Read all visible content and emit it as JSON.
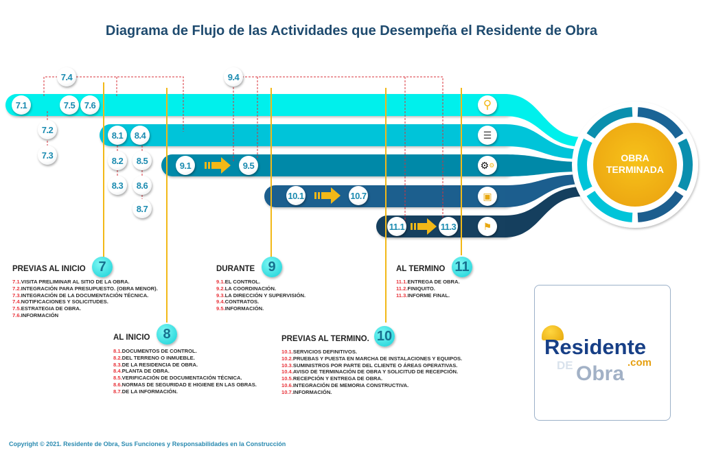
{
  "title": "Diagrama de Flujo de las Actividades que Desempeña el Residente de Obra",
  "colors": {
    "bar1": "#00f0ec",
    "bar2": "#00c4d9",
    "bar3": "#0089a8",
    "bar4": "#1c5e8e",
    "bar5": "#153f5e",
    "accent": "#f2b817",
    "number_red": "#e8333a"
  },
  "badges": [
    "7.1",
    "7.4",
    "7.5",
    "7.6",
    "7.2",
    "7.3",
    "8.1",
    "8.4",
    "8.2",
    "8.5",
    "8.3",
    "8.6",
    "8.7",
    "9.1",
    "9.5",
    "9.4",
    "10.1",
    "10.7",
    "11.1",
    "11.3"
  ],
  "row_icons": [
    "magnifier-icon",
    "clipboard-checklist-icon",
    "gears-icon",
    "document-icon",
    "checkered-flag-icon"
  ],
  "goal": {
    "line1": "OBRA",
    "line2": "TERMINADA"
  },
  "sections": [
    {
      "num": "7",
      "title": "PREVIAS AL INICIO",
      "items": [
        {
          "n": "7.1.",
          "t": "VISITA PRELIMINAR AL SITIO DE LA OBRA."
        },
        {
          "n": "7.2.",
          "t": "INTEGRACIÓN PARA PRESUPUESTO. (OBRA MENOR)."
        },
        {
          "n": "7.3.",
          "t": "INTEGRACIÓN DE LA DOCUMENTACIÓN TÉCNICA."
        },
        {
          "n": "7.4.",
          "t": "NOTIFICACIONES Y SOLICITUDES."
        },
        {
          "n": "7.5.",
          "t": "ESTRATEGIA DE OBRA."
        },
        {
          "n": "7.6.",
          "t": "INFORMACIÓN"
        }
      ]
    },
    {
      "num": "8",
      "title": "AL INICIO",
      "items": [
        {
          "n": "8.1.",
          "t": "DOCUMENTOS DE CONTROL."
        },
        {
          "n": "8.2.",
          "t": "DEL TERRENO O INMUEBLE."
        },
        {
          "n": "8.3.",
          "t": "DE LA RESIDENCIA DE OBRA."
        },
        {
          "n": "8.4.",
          "t": "PLANTA DE OBRA."
        },
        {
          "n": "8.5.",
          "t": "VERIFICACIÓN DE DOCUMENTACIÓN TÉCNICA."
        },
        {
          "n": "8.6.",
          "t": "NORMAS DE SEGURIDAD E HIGIENE EN LAS OBRAS."
        },
        {
          "n": "8.7.",
          "t": "DE LA INFORMACIÓN."
        }
      ]
    },
    {
      "num": "9",
      "title": "DURANTE",
      "items": [
        {
          "n": "9.1.",
          "t": "EL CONTROL."
        },
        {
          "n": "9.2.",
          "t": "LA COORDINACIÓN."
        },
        {
          "n": "9.3.",
          "t": "LA DIRECCIÓN Y SUPERVISIÓN."
        },
        {
          "n": "9.4.",
          "t": "CONTRATOS."
        },
        {
          "n": "9.5.",
          "t": "INFORMACIÓN."
        }
      ]
    },
    {
      "num": "10",
      "title": "PREVIAS AL TERMINO.",
      "items": [
        {
          "n": "10.1.",
          "t": "SERVICIOS DEFINITIVOS."
        },
        {
          "n": "10.2.",
          "t": "PRUEBAS Y PUESTA EN MARCHA DE INSTALACIONES Y EQUIPOS."
        },
        {
          "n": "10.3.",
          "t": "SUMINISTROS POR PARTE DEL CLIENTE O ÁREAS OPERATIVAS."
        },
        {
          "n": "10.4.",
          "t": "AVISO DE TERMINACIÓN DE OBRA Y SOLICITUD DE RECEPCIÓN."
        },
        {
          "n": "10.5.",
          "t": "RECEPCIÓN Y ENTREGA DE OBRA."
        },
        {
          "n": "10.6.",
          "t": "INTEGRACIÓN DE MEMORIA CONSTRUCTIVA."
        },
        {
          "n": "10.7.",
          "t": "INFORMACIÓN."
        }
      ]
    },
    {
      "num": "11",
      "title": "AL TERMINO",
      "items": [
        {
          "n": "11.1.",
          "t": "ENTREGA DE OBRA."
        },
        {
          "n": "11.2.",
          "t": "FINIQUITO."
        },
        {
          "n": "11.3.",
          "t": "INFORME FINAL."
        }
      ]
    }
  ],
  "logo": {
    "word1": "Residente",
    "de": "DE",
    "word2": "Obra",
    "com": ".com"
  },
  "copyright": "Copyright © 2021. Residente de Obra, Sus Funciones y Responsabilidades en la Construcción"
}
